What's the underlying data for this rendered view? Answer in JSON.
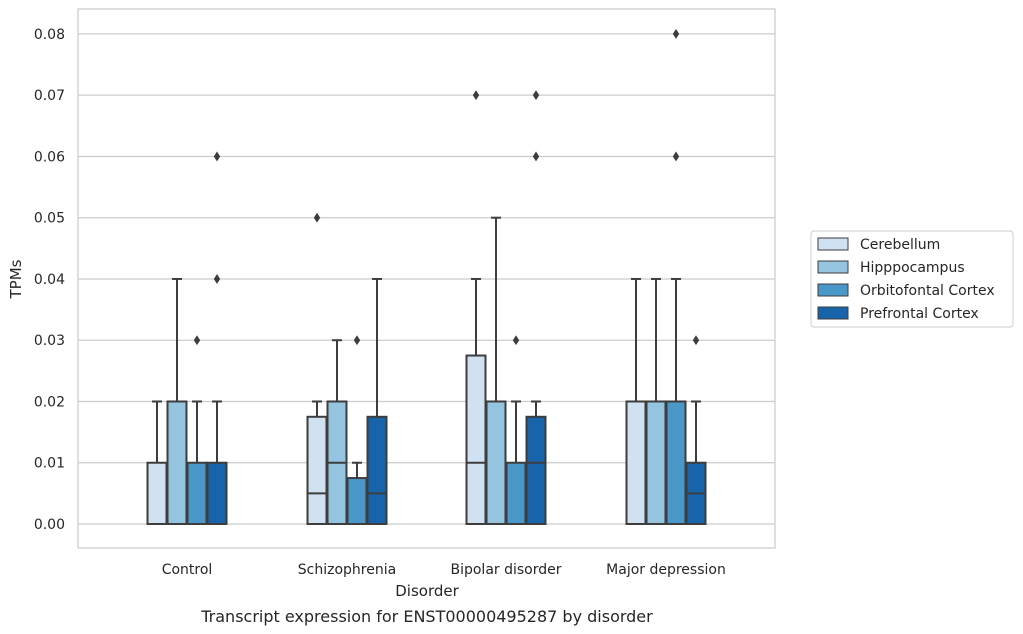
{
  "chart_data": {
    "type": "boxplot",
    "caption": "Transcript expression for ENST00000495287 by disorder",
    "xlabel": "Disorder",
    "ylabel": "TPMs",
    "categories": [
      "Control",
      "Schizophrenia",
      "Bipolar disorder",
      "Major depression"
    ],
    "ylim": [
      -0.004,
      0.084
    ],
    "yticks": [
      0.0,
      0.01,
      0.02,
      0.03,
      0.04,
      0.05,
      0.06,
      0.07,
      0.08
    ],
    "ytick_labels": [
      "0.00",
      "0.01",
      "0.02",
      "0.03",
      "0.04",
      "0.05",
      "0.06",
      "0.07",
      "0.08"
    ],
    "grid": true,
    "legend_position": "right",
    "series": [
      {
        "name": "Cerebellum",
        "color": "#d0e1f2",
        "boxes": [
          {
            "q1": 0.0,
            "median": 0.0,
            "q3": 0.01,
            "whisker_low": 0.0,
            "whisker_high": 0.02,
            "outliers": []
          },
          {
            "q1": 0.0,
            "median": 0.005,
            "q3": 0.0175,
            "whisker_low": 0.0,
            "whisker_high": 0.02,
            "outliers": [
              0.05
            ]
          },
          {
            "q1": 0.0,
            "median": 0.01,
            "q3": 0.0275,
            "whisker_low": 0.0,
            "whisker_high": 0.04,
            "outliers": [
              0.07
            ]
          },
          {
            "q1": 0.0,
            "median": 0.0,
            "q3": 0.02,
            "whisker_low": 0.0,
            "whisker_high": 0.04,
            "outliers": []
          }
        ]
      },
      {
        "name": "Hipppocampus",
        "color": "#94c4df",
        "boxes": [
          {
            "q1": 0.0,
            "median": 0.0,
            "q3": 0.02,
            "whisker_low": 0.0,
            "whisker_high": 0.04,
            "outliers": []
          },
          {
            "q1": 0.0,
            "median": 0.01,
            "q3": 0.02,
            "whisker_low": 0.0,
            "whisker_high": 0.03,
            "outliers": []
          },
          {
            "q1": 0.0,
            "median": 0.0,
            "q3": 0.02,
            "whisker_low": 0.0,
            "whisker_high": 0.05,
            "outliers": []
          },
          {
            "q1": 0.0,
            "median": 0.0,
            "q3": 0.02,
            "whisker_low": 0.0,
            "whisker_high": 0.04,
            "outliers": []
          }
        ]
      },
      {
        "name": "Orbitofontal Cortex",
        "color": "#4a98c9",
        "boxes": [
          {
            "q1": 0.0,
            "median": 0.0,
            "q3": 0.01,
            "whisker_low": 0.0,
            "whisker_high": 0.02,
            "outliers": [
              0.03
            ]
          },
          {
            "q1": 0.0,
            "median": 0.0,
            "q3": 0.0075,
            "whisker_low": 0.0,
            "whisker_high": 0.01,
            "outliers": [
              0.03
            ]
          },
          {
            "q1": 0.0,
            "median": 0.0,
            "q3": 0.01,
            "whisker_low": 0.0,
            "whisker_high": 0.02,
            "outliers": [
              0.03
            ]
          },
          {
            "q1": 0.0,
            "median": 0.0,
            "q3": 0.02,
            "whisker_low": 0.0,
            "whisker_high": 0.04,
            "outliers": []
          }
        ]
      },
      {
        "name": "Prefrontal Cortex",
        "color": "#1764ab",
        "boxes": [
          {
            "q1": 0.0,
            "median": 0.0,
            "q3": 0.01,
            "whisker_low": 0.0,
            "whisker_high": 0.02,
            "outliers": [
              0.04,
              0.06
            ]
          },
          {
            "q1": 0.0,
            "median": 0.005,
            "q3": 0.0175,
            "whisker_low": 0.0,
            "whisker_high": 0.04,
            "outliers": []
          },
          {
            "q1": 0.0,
            "median": 0.01,
            "q3": 0.0175,
            "whisker_low": 0.0,
            "whisker_high": 0.02,
            "outliers": [
              0.06,
              0.07
            ]
          },
          {
            "q1": 0.0,
            "median": 0.005,
            "q3": 0.01,
            "whisker_low": 0.0,
            "whisker_high": 0.02,
            "outliers": [
              0.03
            ]
          }
        ]
      }
    ]
  },
  "extra_outliers": {
    "Major depression": {
      "series": "Orbitofontal Cortex",
      "values": [
        0.06,
        0.08
      ]
    }
  }
}
